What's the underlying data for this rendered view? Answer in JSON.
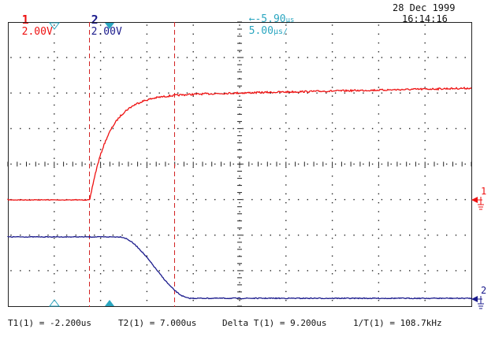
{
  "header": {
    "ch1_number": "1",
    "ch1_scale": "2.00V",
    "ch2_number": "2",
    "ch2_scale": "2.00V",
    "trigger_arrow": "←",
    "timebase_position": "-5.90",
    "timebase_position_unit": "µs",
    "timebase_scale": "5.00",
    "timebase_scale_unit": "µs/",
    "date": "28 Dec 1999",
    "time": "16:14:16"
  },
  "footer": {
    "t1": "T1(1) = -2.200us",
    "t2": "T2(1) = 7.000us",
    "delta": "Delta T(1) = 9.200us",
    "inv": "1/T(1) = 108.7kHz"
  },
  "markers": {
    "ch1_label": "1",
    "ch2_label": "2"
  },
  "colors": {
    "ch1": "#ee1111",
    "ch2": "#1a1a8c",
    "cursor": "#d22222",
    "marker": "#2aa6c0",
    "grid": "#222222"
  }
}
